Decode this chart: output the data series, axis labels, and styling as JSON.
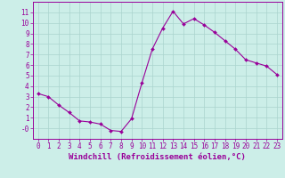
{
  "x": [
    0,
    1,
    2,
    3,
    4,
    5,
    6,
    7,
    8,
    9,
    10,
    11,
    12,
    13,
    14,
    15,
    16,
    17,
    18,
    19,
    20,
    21,
    22,
    23
  ],
  "y": [
    3.3,
    3.0,
    2.2,
    1.5,
    0.7,
    0.6,
    0.4,
    -0.2,
    -0.3,
    0.9,
    4.3,
    7.5,
    9.5,
    11.1,
    9.9,
    10.4,
    9.8,
    9.1,
    8.3,
    7.5,
    6.5,
    6.2,
    5.9,
    5.1
  ],
  "line_color": "#990099",
  "marker": "D",
  "marker_size": 2.0,
  "bg_color": "#cceee8",
  "grid_color": "#aad4ce",
  "xlabel": "Windchill (Refroidissement éolien,°C)",
  "xlim": [
    -0.5,
    23.5
  ],
  "ylim": [
    -1.0,
    12.0
  ],
  "xticks": [
    0,
    1,
    2,
    3,
    4,
    5,
    6,
    7,
    8,
    9,
    10,
    11,
    12,
    13,
    14,
    15,
    16,
    17,
    18,
    19,
    20,
    21,
    22,
    23
  ],
  "ytick_labels": [
    "-0",
    "1",
    "2",
    "3",
    "4",
    "5",
    "6",
    "7",
    "8",
    "9",
    "10",
    "11"
  ],
  "tick_color": "#990099",
  "label_color": "#990099",
  "axis_color": "#990099",
  "font_size": 5.5,
  "xlabel_fontsize": 6.5
}
